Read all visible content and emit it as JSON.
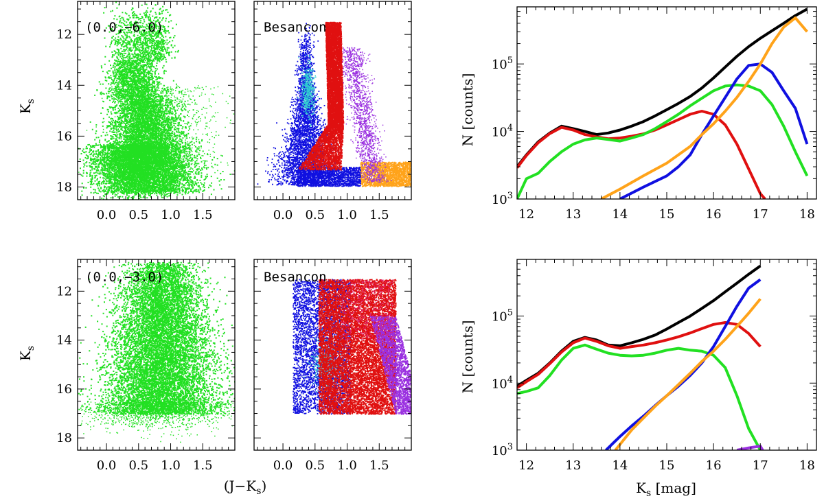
{
  "colors": {
    "observed": "#22e022",
    "total": "#000000",
    "red_clump_disk": "#e01010",
    "blue_comp": "#1010e0",
    "orange_comp": "#ffa31a",
    "purple_comp": "#9a30e0",
    "cyan_comp": "#30d0d0"
  },
  "labels": {
    "cmd_ylabel": "K_s",
    "cmd_xlabel": "(J−K_s)",
    "hist_ylabel": "N [counts]",
    "hist_xlabel": "K_s [mag]",
    "field_top": "(0.0,−6.0)",
    "field_bottom": "(0.0,−3.0)",
    "model": "Besancon"
  },
  "chart_data": [
    {
      "type": "scatter",
      "panel": "observed CMD, field (0.0,-6.0)",
      "annotation": "(0.0,−6.0)",
      "xlabel": "(J−Ks)",
      "ylabel": "Ks",
      "xlim": [
        -0.45,
        2.0
      ],
      "ylim": [
        18.5,
        10.7
      ],
      "y_inverted": true,
      "xticks": [
        "0.0",
        "0.5",
        "1.0",
        "1.5"
      ],
      "yticks": [
        "12",
        "14",
        "16",
        "18"
      ],
      "series": [
        {
          "color": "#22e022",
          "description": "dense point cloud"
        }
      ]
    },
    {
      "type": "scatter",
      "panel": "Besancon model CMD, field (0.0,-6.0)",
      "annotation": "Besancon",
      "xlim": [
        -0.45,
        2.0
      ],
      "ylim": [
        18.5,
        10.7
      ],
      "y_inverted": true,
      "xticks": [
        "0.0",
        "0.5",
        "1.0",
        "1.5"
      ],
      "yticks": [
        "12",
        "14",
        "16",
        "18"
      ],
      "series": [
        {
          "color": "#1010e0"
        },
        {
          "color": "#e01010"
        },
        {
          "color": "#ffa31a"
        },
        {
          "color": "#9a30e0"
        },
        {
          "color": "#30d0d0"
        }
      ]
    },
    {
      "type": "line",
      "panel": "luminosity function, field (0.0,-6.0)",
      "xlabel": "",
      "ylabel": "N [counts]",
      "xlim": [
        11.8,
        18.2
      ],
      "ylim": [
        1000,
        700000
      ],
      "yscale": "log",
      "xticks": [
        "12",
        "13",
        "14",
        "15",
        "16",
        "17",
        "18"
      ],
      "yticks": [
        "10^3",
        "10^4",
        "10^5"
      ],
      "series": [
        {
          "color": "#000000",
          "x": [
            11.8,
            12.0,
            12.25,
            12.5,
            12.75,
            13.0,
            13.25,
            13.5,
            13.75,
            14.0,
            14.25,
            14.5,
            14.75,
            15.0,
            15.25,
            15.5,
            15.75,
            16.0,
            16.25,
            16.5,
            16.75,
            17.0,
            17.25,
            17.5,
            17.75,
            18.0
          ],
          "y": [
            3000,
            4500,
            7000,
            9500,
            12000,
            11000,
            10000,
            9000,
            9500,
            10500,
            12000,
            14000,
            17000,
            21000,
            26000,
            33000,
            44000,
            62000,
            90000,
            130000,
            180000,
            240000,
            310000,
            400000,
            520000,
            650000
          ]
        },
        {
          "color": "#e01010",
          "x": [
            11.8,
            12.0,
            12.25,
            12.5,
            12.75,
            13.0,
            13.25,
            13.5,
            13.75,
            14.0,
            14.25,
            14.5,
            14.75,
            15.0,
            15.25,
            15.5,
            15.75,
            16.0,
            16.25,
            16.5,
            16.75,
            17.0,
            17.1
          ],
          "y": [
            2900,
            4400,
            6800,
            9300,
            11500,
            10500,
            9000,
            8300,
            7800,
            8000,
            8500,
            9200,
            10500,
            12500,
            15000,
            18000,
            20000,
            18000,
            12500,
            6500,
            2800,
            1200,
            1000
          ]
        },
        {
          "color": "#22e022",
          "x": [
            11.8,
            12.0,
            12.25,
            12.5,
            12.75,
            13.0,
            13.25,
            13.5,
            13.75,
            14.0,
            14.25,
            14.5,
            14.75,
            15.0,
            15.25,
            15.5,
            15.75,
            16.0,
            16.25,
            16.5,
            16.75,
            17.0,
            17.25,
            17.5,
            17.75,
            18.0
          ],
          "y": [
            1000,
            2000,
            2400,
            3600,
            5000,
            6500,
            7500,
            8000,
            7600,
            7200,
            8000,
            9000,
            11000,
            14000,
            18000,
            24000,
            31000,
            40000,
            47000,
            49000,
            47000,
            40000,
            25000,
            12000,
            5000,
            2200
          ]
        },
        {
          "color": "#1010e0",
          "x": [
            14.0,
            14.5,
            15.0,
            15.25,
            15.5,
            15.75,
            16.0,
            16.25,
            16.5,
            16.75,
            17.0,
            17.25,
            17.5,
            17.75,
            18.0
          ],
          "y": [
            1000,
            1500,
            2200,
            3000,
            4500,
            9000,
            17000,
            32000,
            60000,
            95000,
            100000,
            75000,
            40000,
            22000,
            6500
          ]
        },
        {
          "color": "#ffa31a",
          "x": [
            13.6,
            14.0,
            14.5,
            15.0,
            15.5,
            15.75,
            16.0,
            16.25,
            16.5,
            16.75,
            17.0,
            17.25,
            17.5,
            17.75,
            18.0
          ],
          "y": [
            1000,
            1400,
            2200,
            3400,
            6000,
            9000,
            13000,
            20000,
            32000,
            55000,
            100000,
            200000,
            350000,
            480000,
            300000
          ]
        }
      ]
    },
    {
      "type": "scatter",
      "panel": "observed CMD, field (0.0,-3.0)",
      "annotation": "(0.0,−3.0)",
      "xlabel": "(J−Ks)",
      "ylabel": "Ks",
      "xlim": [
        -0.45,
        2.0
      ],
      "ylim": [
        18.5,
        10.7
      ],
      "y_inverted": true,
      "xticks": [
        "0.0",
        "0.5",
        "1.0",
        "1.5"
      ],
      "yticks": [
        "12",
        "14",
        "16",
        "18"
      ],
      "series": [
        {
          "color": "#22e022",
          "description": "dense point cloud"
        }
      ]
    },
    {
      "type": "scatter",
      "panel": "Besancon model CMD, field (0.0,-3.0)",
      "annotation": "Besancon",
      "xlabel": "(J−Ks)",
      "xlim": [
        -0.45,
        2.0
      ],
      "ylim": [
        18.5,
        10.7
      ],
      "y_inverted": true,
      "xticks": [
        "0.0",
        "0.5",
        "1.0",
        "1.5"
      ],
      "yticks": [
        "12",
        "14",
        "16",
        "18"
      ],
      "series": [
        {
          "color": "#1010e0"
        },
        {
          "color": "#e01010"
        },
        {
          "color": "#ffa31a"
        },
        {
          "color": "#9a30e0"
        },
        {
          "color": "#30d0d0"
        }
      ]
    },
    {
      "type": "line",
      "panel": "luminosity function, field (0.0,-3.0)",
      "xlabel": "Ks [mag]",
      "ylabel": "N [counts]",
      "xlim": [
        11.8,
        18.2
      ],
      "ylim": [
        1000,
        700000
      ],
      "yscale": "log",
      "xticks": [
        "12",
        "13",
        "14",
        "15",
        "16",
        "17",
        "18"
      ],
      "yticks": [
        "10^3",
        "10^4",
        "10^5"
      ],
      "series": [
        {
          "color": "#000000",
          "x": [
            11.8,
            12.0,
            12.25,
            12.5,
            12.75,
            13.0,
            13.25,
            13.5,
            13.75,
            14.0,
            14.25,
            14.5,
            14.75,
            15.0,
            15.25,
            15.5,
            15.75,
            16.0,
            16.25,
            16.5,
            16.75,
            17.0
          ],
          "y": [
            9000,
            11000,
            14000,
            20000,
            30000,
            42000,
            48000,
            44000,
            37000,
            36000,
            40000,
            45000,
            52000,
            64000,
            80000,
            100000,
            130000,
            170000,
            230000,
            310000,
            420000,
            560000
          ]
        },
        {
          "color": "#e01010",
          "x": [
            11.8,
            12.0,
            12.25,
            12.5,
            12.75,
            13.0,
            13.25,
            13.5,
            13.75,
            14.0,
            14.25,
            14.5,
            14.75,
            15.0,
            15.25,
            15.5,
            15.75,
            16.0,
            16.25,
            16.5,
            16.75,
            17.0
          ],
          "y": [
            8500,
            10500,
            13500,
            19500,
            29000,
            40000,
            47000,
            42000,
            36000,
            33000,
            35000,
            37000,
            40000,
            44000,
            49000,
            56000,
            65000,
            75000,
            80000,
            75000,
            55000,
            35000
          ]
        },
        {
          "color": "#22e022",
          "x": [
            11.8,
            12.0,
            12.25,
            12.5,
            12.75,
            13.0,
            13.25,
            13.5,
            13.75,
            14.0,
            14.25,
            14.5,
            14.75,
            15.0,
            15.25,
            15.5,
            15.75,
            16.0,
            16.25,
            16.5,
            16.75,
            17.0
          ],
          "y": [
            7000,
            7500,
            8500,
            13000,
            22000,
            33000,
            37000,
            32000,
            28000,
            26000,
            25500,
            26000,
            28000,
            31000,
            33000,
            31000,
            30000,
            26000,
            17000,
            6500,
            2100,
            1000
          ]
        },
        {
          "color": "#1010e0",
          "x": [
            13.7,
            14.0,
            14.25,
            14.5,
            14.75,
            15.0,
            15.25,
            15.5,
            15.75,
            16.0,
            16.25,
            16.5,
            16.75,
            17.0
          ],
          "y": [
            1000,
            1600,
            2300,
            3200,
            4600,
            6500,
            9000,
            13000,
            20000,
            35000,
            70000,
            140000,
            260000,
            350000
          ]
        },
        {
          "color": "#ffa31a",
          "x": [
            13.9,
            14.25,
            14.5,
            14.75,
            15.0,
            15.25,
            15.5,
            15.75,
            16.0,
            16.25,
            16.5,
            16.75,
            17.0
          ],
          "y": [
            1000,
            2000,
            3000,
            4500,
            6500,
            9500,
            14000,
            21000,
            30000,
            45000,
            70000,
            110000,
            180000
          ]
        },
        {
          "color": "#9a30e0",
          "x": [
            16.5,
            16.75,
            17.0,
            17.05
          ],
          "y": [
            1000,
            1080,
            1150,
            1000
          ]
        }
      ]
    }
  ]
}
